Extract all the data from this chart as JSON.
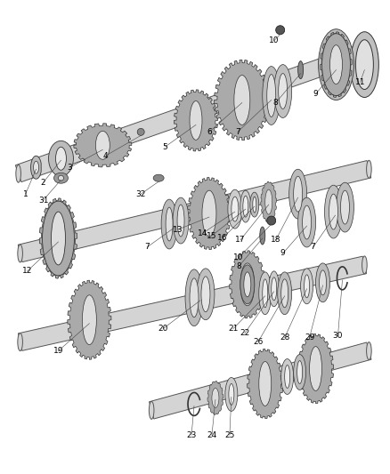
{
  "bg_color": "#ffffff",
  "line_color": "#222222",
  "label_color": "#000000",
  "label_fontsize": 6.5,
  "figsize": [
    4.38,
    5.33
  ],
  "dpi": 100,
  "shaft_color": "#d8d8d8",
  "gear_outer_color": "#b8b8b8",
  "gear_inner_color": "#e8e8e8",
  "ring_color": "#c8c8c8",
  "dark_color": "#888888"
}
